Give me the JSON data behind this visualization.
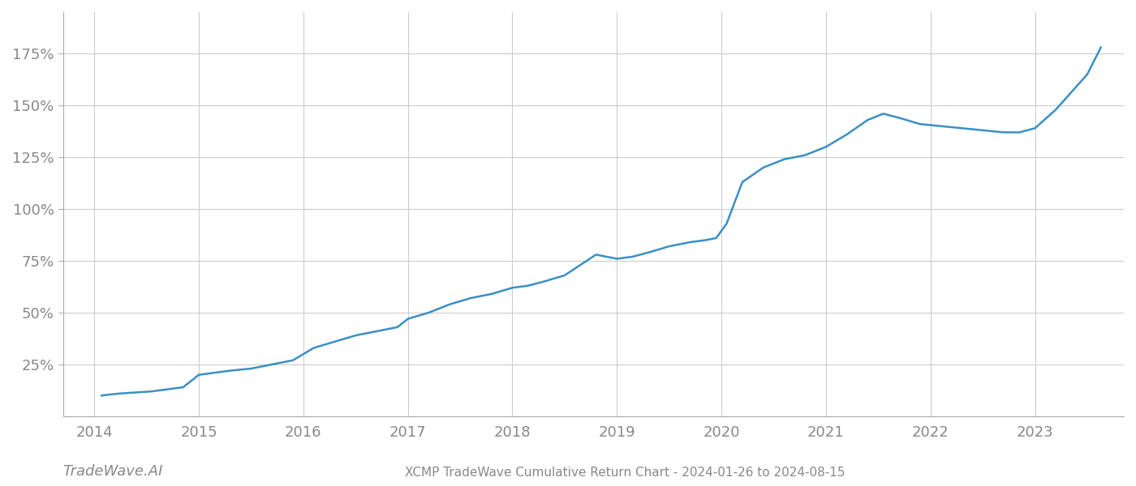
{
  "title": "XCMP TradeWave Cumulative Return Chart - 2024-01-26 to 2024-08-15",
  "watermark": "TradeWave.AI",
  "line_color": "#3a8fc7",
  "line_width": 1.8,
  "background_color": "#ffffff",
  "grid_color": "#cccccc",
  "x_years": [
    2014,
    2015,
    2016,
    2017,
    2018,
    2019,
    2020,
    2021,
    2022,
    2023
  ],
  "x_data": [
    2014.07,
    2014.15,
    2014.25,
    2014.4,
    2014.55,
    2014.7,
    2014.85,
    2015.0,
    2015.15,
    2015.3,
    2015.5,
    2015.7,
    2015.9,
    2016.1,
    2016.3,
    2016.5,
    2016.7,
    2016.9,
    2017.0,
    2017.2,
    2017.4,
    2017.6,
    2017.8,
    2018.0,
    2018.15,
    2018.3,
    2018.5,
    2018.65,
    2018.8,
    2019.0,
    2019.15,
    2019.3,
    2019.5,
    2019.7,
    2019.85,
    2019.95,
    2020.05,
    2020.2,
    2020.4,
    2020.6,
    2020.8,
    2021.0,
    2021.2,
    2021.4,
    2021.55,
    2021.7,
    2021.9,
    2022.1,
    2022.3,
    2022.5,
    2022.7,
    2022.85,
    2023.0,
    2023.2,
    2023.5,
    2023.63
  ],
  "y_data": [
    10,
    10.5,
    11,
    11.5,
    12,
    13,
    14,
    20,
    21,
    22,
    23,
    25,
    27,
    33,
    36,
    39,
    41,
    43,
    47,
    50,
    54,
    57,
    59,
    62,
    63,
    65,
    68,
    73,
    78,
    76,
    77,
    79,
    82,
    84,
    85,
    86,
    93,
    113,
    120,
    124,
    126,
    130,
    136,
    143,
    146,
    144,
    141,
    140,
    139,
    138,
    137,
    137,
    139,
    148,
    165,
    178
  ],
  "yticks": [
    25,
    50,
    75,
    100,
    125,
    150,
    175
  ],
  "ytick_labels": [
    "25%",
    "50%",
    "75%",
    "100%",
    "125%",
    "150%",
    "175%"
  ],
  "xlim": [
    2013.7,
    2023.85
  ],
  "ylim": [
    0,
    195
  ],
  "title_fontsize": 11,
  "tick_fontsize": 13,
  "watermark_fontsize": 13
}
